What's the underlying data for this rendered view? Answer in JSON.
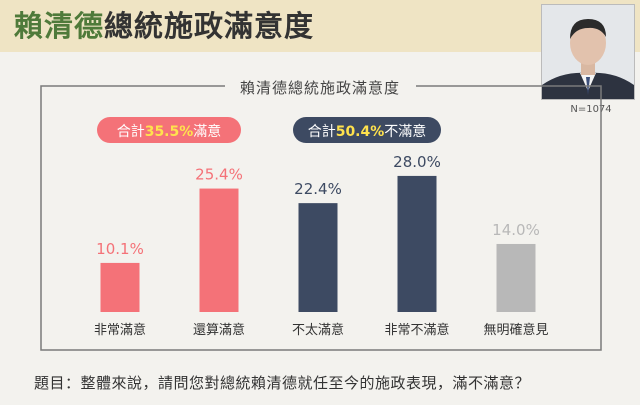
{
  "header": {
    "title_name": "賴清德",
    "title_rest": "總統施政滿意度"
  },
  "photo": {
    "icon": "portrait-icon"
  },
  "sample": "N=1074",
  "question": "題目：整體來說，請問您對總統賴清德就任至今的施政表現，滿不滿意？",
  "colors": {
    "satisfied": "#f47278",
    "dissatisfied": "#3d4a62",
    "unsure": "#b8b8b8"
  },
  "chart_data": {
    "type": "bar",
    "title": "賴清德總統施政滿意度",
    "categories": [
      "非常滿意",
      "還算滿意",
      "不太滿意",
      "非常不滿意",
      "無明確意見"
    ],
    "values": [
      10.1,
      25.4,
      22.4,
      28.0,
      14.0
    ],
    "value_labels": [
      "10.1%",
      "25.4%",
      "22.4%",
      "28.0%",
      "14.0%"
    ],
    "groups": [
      "satisfied",
      "satisfied",
      "dissatisfied",
      "dissatisfied",
      "unsure"
    ],
    "ylim": [
      0,
      30
    ],
    "grid": false,
    "annotations": [
      {
        "prefix": "合計",
        "value": "35.5%",
        "suffix": "滿意",
        "group": "satisfied"
      },
      {
        "prefix": "合計",
        "value": "50.4%",
        "suffix": "不滿意",
        "group": "dissatisfied"
      }
    ]
  }
}
